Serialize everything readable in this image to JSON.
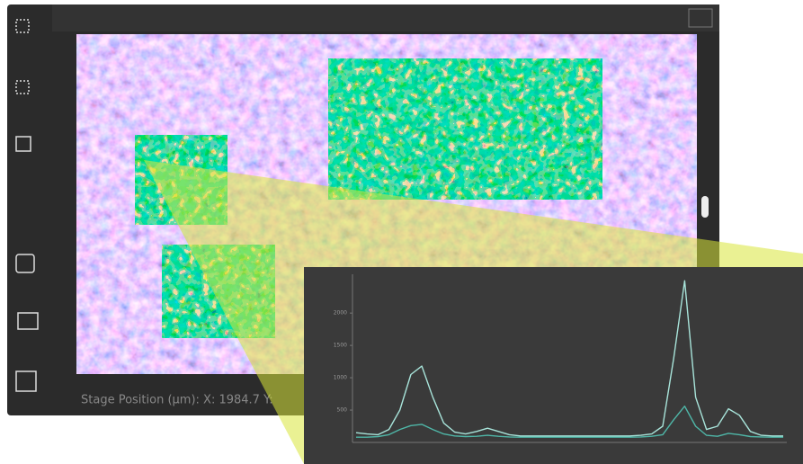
{
  "status_bar": {
    "stage_position": "Stage Position (µm): X: 1984.7 Y:"
  },
  "chart_data": {
    "type": "line",
    "categories": [
      null,
      null,
      null,
      null,
      null,
      null,
      null,
      null,
      null,
      null,
      null,
      null,
      null,
      null,
      null,
      null,
      null,
      null,
      null,
      null,
      null,
      null,
      null,
      null,
      null,
      null,
      null,
      null,
      null,
      null,
      null,
      null,
      null,
      null,
      null,
      null,
      null,
      null,
      null,
      null
    ],
    "series": [
      {
        "color": "#a8e4da",
        "values": [
          150,
          130,
          120,
          200,
          500,
          1050,
          1180,
          700,
          300,
          160,
          130,
          170,
          220,
          170,
          120,
          100,
          100,
          100,
          100,
          100,
          100,
          100,
          100,
          100,
          100,
          100,
          110,
          130,
          250,
          1300,
          2500,
          700,
          200,
          250,
          520,
          420,
          170,
          110,
          100,
          100
        ]
      },
      {
        "color": "#4fb7a8",
        "values": [
          80,
          80,
          90,
          120,
          200,
          260,
          280,
          200,
          130,
          100,
          90,
          95,
          110,
          95,
          85,
          80,
          80,
          80,
          80,
          80,
          80,
          80,
          80,
          80,
          80,
          80,
          85,
          95,
          120,
          350,
          560,
          250,
          110,
          95,
          140,
          120,
          90,
          85,
          80,
          80
        ]
      }
    ],
    "ylim": [
      0,
      2600
    ],
    "yticks": [
      500,
      1000,
      1500,
      2000
    ],
    "grid": false
  }
}
